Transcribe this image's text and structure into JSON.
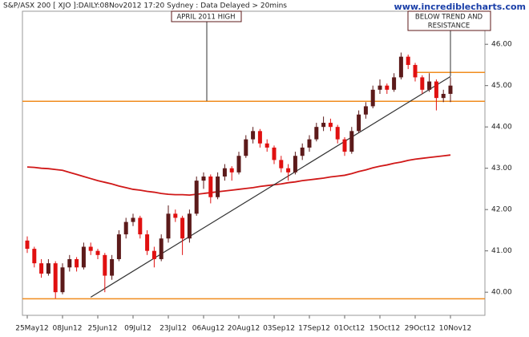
{
  "chart_data": {
    "type": "candlestick",
    "title": "S&P/ASX 200 [ XJO ]:DAILY:08Nov2012 17:20 Sydney : Data Delayed > 20mins",
    "watermark": "www.incrediblecharts.com",
    "categories": [
      "25May12",
      null,
      null,
      null,
      null,
      "08Jun12",
      null,
      null,
      null,
      null,
      "25Jun12",
      null,
      null,
      null,
      null,
      "09Jul12",
      null,
      null,
      null,
      null,
      "23Jul12",
      null,
      null,
      null,
      null,
      "06Aug12",
      null,
      null,
      null,
      null,
      "20Aug12",
      null,
      null,
      null,
      null,
      "03Sep12",
      null,
      null,
      null,
      null,
      "17Sep12",
      null,
      null,
      null,
      null,
      "01Oct12",
      null,
      null,
      null,
      null,
      "15Oct12",
      null,
      null,
      null,
      null,
      "29Oct12",
      null,
      null,
      null,
      null,
      "10Nov12"
    ],
    "ohlc": [
      [
        41.25,
        41.35,
        40.95,
        41.05
      ],
      [
        41.05,
        41.1,
        40.6,
        40.7
      ],
      [
        40.7,
        40.8,
        40.35,
        40.45
      ],
      [
        40.45,
        40.8,
        40.4,
        40.7
      ],
      [
        40.7,
        40.75,
        39.85,
        40.0
      ],
      [
        40.0,
        40.7,
        39.95,
        40.6
      ],
      [
        40.6,
        40.9,
        40.5,
        40.8
      ],
      [
        40.8,
        40.85,
        40.5,
        40.6
      ],
      [
        40.6,
        41.2,
        40.55,
        41.1
      ],
      [
        41.1,
        41.2,
        40.9,
        41.0
      ],
      [
        41.0,
        41.05,
        40.8,
        40.9
      ],
      [
        40.9,
        40.95,
        40.0,
        40.4
      ],
      [
        40.4,
        40.9,
        40.3,
        40.8
      ],
      [
        40.8,
        41.5,
        40.75,
        41.4
      ],
      [
        41.4,
        41.8,
        41.3,
        41.7
      ],
      [
        41.7,
        41.9,
        41.6,
        41.8
      ],
      [
        41.8,
        41.85,
        41.3,
        41.4
      ],
      [
        41.4,
        41.5,
        40.9,
        41.0
      ],
      [
        41.0,
        41.1,
        40.6,
        40.8
      ],
      [
        40.8,
        41.4,
        40.75,
        41.3
      ],
      [
        41.3,
        42.1,
        41.2,
        41.9
      ],
      [
        41.9,
        42.0,
        41.7,
        41.8
      ],
      [
        41.8,
        41.85,
        40.9,
        41.3
      ],
      [
        41.3,
        42.0,
        41.2,
        41.9
      ],
      [
        41.9,
        42.8,
        41.85,
        42.7
      ],
      [
        42.7,
        42.9,
        42.5,
        42.8
      ],
      [
        42.8,
        42.85,
        42.15,
        42.3
      ],
      [
        42.3,
        42.9,
        42.25,
        42.8
      ],
      [
        42.8,
        43.1,
        42.7,
        43.0
      ],
      [
        43.0,
        43.05,
        42.7,
        42.9
      ],
      [
        42.9,
        43.4,
        42.85,
        43.3
      ],
      [
        43.3,
        43.8,
        43.25,
        43.7
      ],
      [
        43.7,
        44.0,
        43.6,
        43.9
      ],
      [
        43.9,
        43.95,
        43.5,
        43.6
      ],
      [
        43.6,
        43.7,
        43.4,
        43.5
      ],
      [
        43.5,
        43.55,
        43.1,
        43.2
      ],
      [
        43.2,
        43.3,
        42.9,
        43.0
      ],
      [
        43.0,
        43.1,
        42.7,
        42.9
      ],
      [
        42.9,
        43.4,
        42.85,
        43.3
      ],
      [
        43.3,
        43.6,
        43.2,
        43.5
      ],
      [
        43.5,
        43.8,
        43.4,
        43.7
      ],
      [
        43.7,
        44.1,
        43.65,
        44.0
      ],
      [
        44.0,
        44.25,
        43.9,
        44.1
      ],
      [
        44.1,
        44.2,
        43.9,
        44.0
      ],
      [
        44.0,
        44.05,
        43.6,
        43.7
      ],
      [
        43.7,
        43.75,
        43.3,
        43.4
      ],
      [
        43.4,
        44.0,
        43.35,
        43.9
      ],
      [
        43.9,
        44.4,
        43.85,
        44.3
      ],
      [
        44.3,
        44.6,
        44.2,
        44.5
      ],
      [
        44.5,
        45.0,
        44.45,
        44.9
      ],
      [
        44.9,
        45.15,
        44.8,
        45.0
      ],
      [
        45.0,
        45.05,
        44.8,
        44.9
      ],
      [
        44.9,
        45.3,
        44.85,
        45.2
      ],
      [
        45.2,
        45.8,
        45.15,
        45.7
      ],
      [
        45.7,
        45.75,
        45.4,
        45.5
      ],
      [
        45.5,
        45.55,
        45.1,
        45.2
      ],
      [
        45.2,
        45.25,
        44.8,
        44.9
      ],
      [
        44.9,
        45.3,
        44.85,
        45.1
      ],
      [
        45.1,
        45.15,
        44.4,
        44.7
      ],
      [
        44.7,
        44.9,
        44.6,
        44.8
      ],
      [
        44.8,
        45.2,
        44.6,
        45.0
      ]
    ],
    "up_color": "#5c1a1a",
    "down_color": "#e01010",
    "moving_average": {
      "color": "#d01818",
      "values": [
        43.03,
        43.02,
        43.0,
        42.99,
        42.97,
        42.95,
        42.9,
        42.85,
        42.8,
        42.75,
        42.7,
        42.66,
        42.62,
        42.57,
        42.53,
        42.49,
        42.47,
        42.44,
        42.42,
        42.39,
        42.37,
        42.36,
        42.36,
        42.35,
        42.37,
        42.39,
        42.41,
        42.43,
        42.45,
        42.47,
        42.49,
        42.51,
        42.53,
        42.56,
        42.58,
        42.6,
        42.62,
        42.65,
        42.67,
        42.7,
        42.72,
        42.74,
        42.76,
        42.79,
        42.81,
        42.83,
        42.87,
        42.92,
        42.96,
        43.01,
        43.05,
        43.08,
        43.12,
        43.15,
        43.19,
        43.22,
        43.24,
        43.26,
        43.28,
        43.3,
        43.32
      ]
    },
    "trendline": {
      "color": "#333333",
      "x": [
        9,
        60
      ],
      "values": [
        39.88,
        45.22
      ]
    },
    "levels": [
      {
        "value": 44.62,
        "color": "#f08c1e"
      },
      {
        "value": 45.32,
        "color": "#f08c1e",
        "start": 55
      },
      {
        "value": 39.84,
        "color": "#f08c1e"
      }
    ],
    "annotations": [
      "APRIL 2011 HIGH",
      "BELOW TREND AND",
      "RESISTANCE"
    ],
    "ylim": [
      39.44,
      46.8
    ],
    "yticks": [
      {
        "value": 40,
        "label": "40.00"
      },
      {
        "value": 41,
        "label": "41.00"
      },
      {
        "value": 42,
        "label": "42.00"
      },
      {
        "value": 43,
        "label": "43.00"
      },
      {
        "value": 44,
        "label": "44.00"
      },
      {
        "value": 45,
        "label": "45.00"
      },
      {
        "value": 46,
        "label": "46.00"
      }
    ]
  }
}
